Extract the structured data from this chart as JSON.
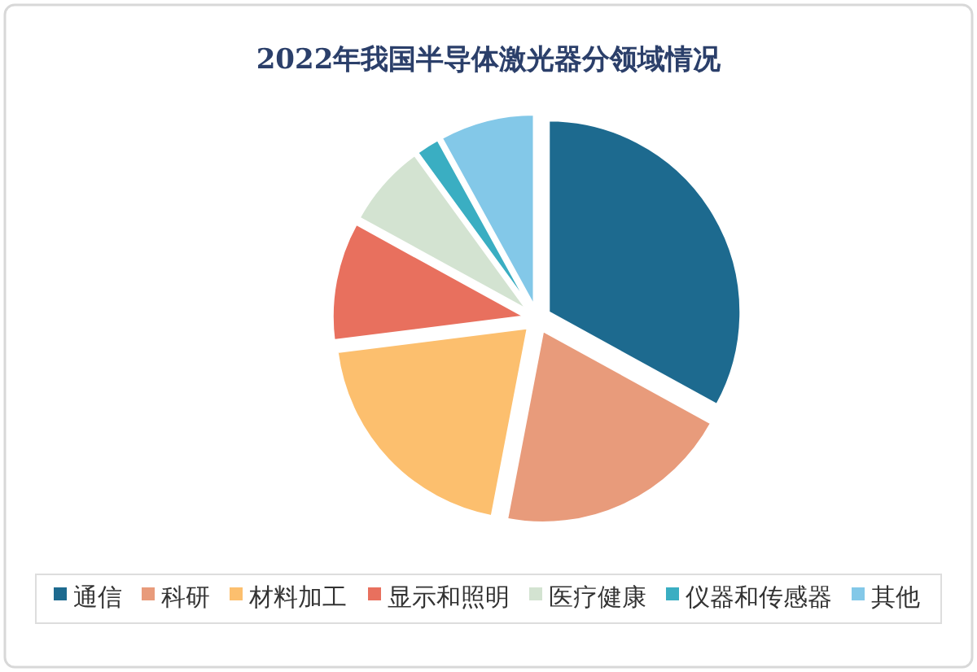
{
  "chart_data": {
    "type": "pie",
    "title": "2022年我国半导体激光器分领域情况",
    "categories": [
      "通信",
      "科研",
      "材料加工",
      "显示和照明",
      "医疗健康",
      "仪器和传感器",
      "其他"
    ],
    "values": [
      33,
      20,
      20,
      10,
      7,
      2,
      8
    ],
    "colors": [
      "#1d6a8f",
      "#e89b7b",
      "#fcbf6e",
      "#e8705e",
      "#d3e3d1",
      "#3aaec2",
      "#83c8e8"
    ],
    "legend": "bottom"
  }
}
